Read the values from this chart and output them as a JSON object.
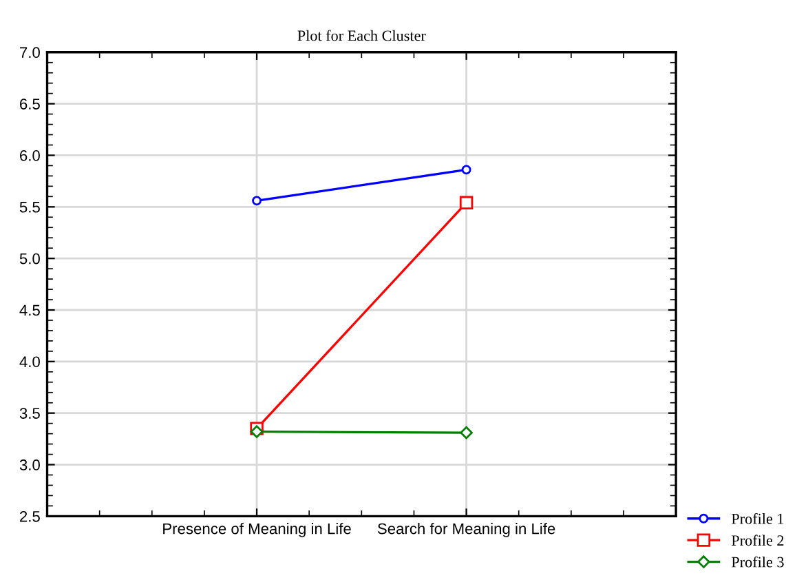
{
  "chart_data": {
    "type": "line",
    "title": "Plot for Each Cluster",
    "categories": [
      "Presence of Meaning in Life",
      "Search for Meaning in Life"
    ],
    "series": [
      {
        "name": "Profile 1",
        "color": "#0000ff",
        "marker": "circle",
        "values": [
          5.56,
          5.86
        ]
      },
      {
        "name": "Profile 2",
        "color": "#ff0000",
        "marker": "square",
        "values": [
          3.35,
          5.54
        ]
      },
      {
        "name": "Profile 3",
        "color": "#008000",
        "marker": "diamond",
        "values": [
          3.32,
          3.31
        ]
      }
    ],
    "ylim": [
      2.5,
      7.0
    ],
    "yticks": [
      2.5,
      {
        "value": 3,
        "label": "3.0"
      },
      3.5,
      {
        "value": 4,
        "label": "4.0"
      },
      4.5,
      {
        "value": 5,
        "label": "5.0"
      },
      5.5,
      {
        "value": 6,
        "label": "6.0"
      },
      6.5,
      {
        "value": 7,
        "label": "7.0"
      }
    ],
    "grid": true,
    "legend": "bottom right",
    "line_style": "solid"
  }
}
